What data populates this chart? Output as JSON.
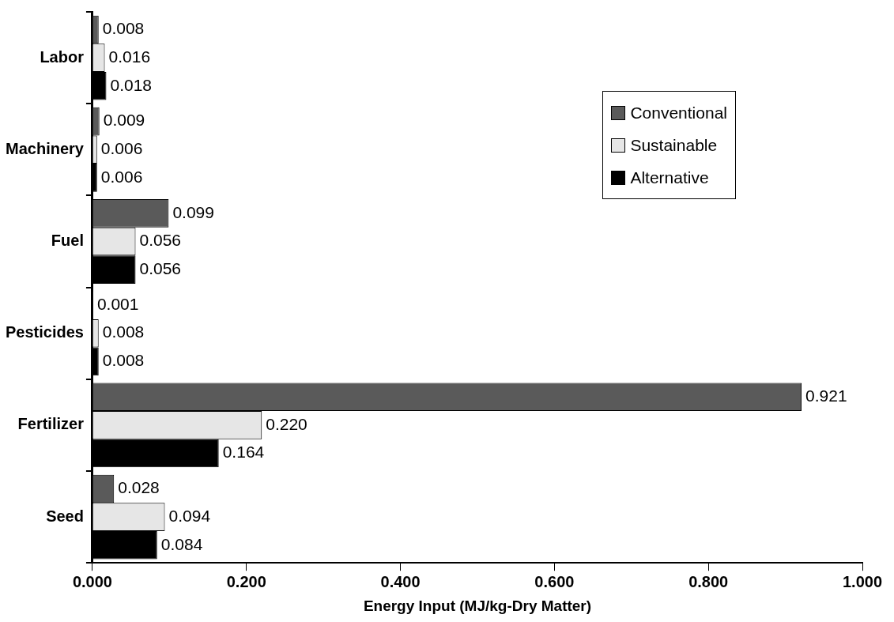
{
  "chart_data": {
    "type": "bar",
    "orientation": "horizontal",
    "xlabel": "Energy Input (MJ/kg-Dry Matter)",
    "categories": [
      "Labor",
      "Machinery",
      "Fuel",
      "Pesticides",
      "Fertilizer",
      "Seed"
    ],
    "series": [
      {
        "name": "Conventional",
        "color": "#5a5a5a",
        "values": [
          0.008,
          0.009,
          0.099,
          0.001,
          0.921,
          0.028
        ],
        "value_labels": [
          "0.008",
          "0.009",
          "0.099",
          "0.001",
          "0.921",
          "0.028"
        ]
      },
      {
        "name": "Sustainable",
        "color": "#e6e6e6",
        "values": [
          0.016,
          0.006,
          0.056,
          0.008,
          0.22,
          0.094
        ],
        "value_labels": [
          "0.016",
          "0.006",
          "0.056",
          "0.008",
          "0.220",
          "0.094"
        ]
      },
      {
        "name": "Alternative",
        "color": "#000000",
        "values": [
          0.018,
          0.006,
          0.056,
          0.008,
          0.164,
          0.084
        ],
        "value_labels": [
          "0.018",
          "0.006",
          "0.056",
          "0.008",
          "0.164",
          "0.084"
        ]
      }
    ],
    "xlim": [
      0,
      1
    ],
    "xticks": [
      {
        "value": 0,
        "label": "0.000"
      },
      {
        "value": 0.2,
        "label": "0.200"
      },
      {
        "value": 0.4,
        "label": "0.400"
      },
      {
        "value": 0.6,
        "label": "0.600"
      },
      {
        "value": 0.8,
        "label": "0.800"
      },
      {
        "value": 1,
        "label": "1.000"
      }
    ],
    "grid": false,
    "legend": "top right"
  }
}
